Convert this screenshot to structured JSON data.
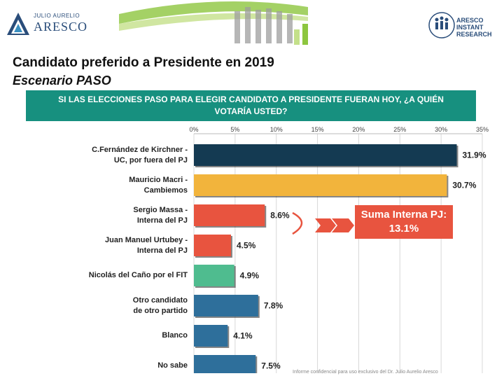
{
  "header": {
    "logo_left_small": "JULIO AURELIO",
    "logo_left_big": "ARESCO",
    "logo_right_lines": [
      "ARESCO",
      "INSTANT",
      "RESEARCH"
    ]
  },
  "title": "Candidato preferido a Presidente en 2019",
  "subtitle": "Escenario PASO",
  "question": "SI LAS ELECCIONES PASO PARA ELEGIR CANDIDATO A PRESIDENTE FUERAN HOY, ¿A QUIÉN VOTARÍA USTED?",
  "annotation": {
    "line1": "Suma Interna PJ:",
    "line2": "13.1%"
  },
  "chart_data": {
    "type": "bar",
    "orientation": "horizontal",
    "categories": [
      [
        "C.Fernández de Kirchner -",
        "UC, por fuera del PJ"
      ],
      [
        "Mauricio Macri -",
        "Cambiemos"
      ],
      [
        "Sergio Massa -",
        "Interna del PJ"
      ],
      [
        "Juan Manuel Urtubey -",
        "Interna del PJ"
      ],
      [
        "Nicolás del Caño por el FIT"
      ],
      [
        "Otro candidato",
        "de otro partido"
      ],
      [
        "Blanco"
      ],
      [
        "No sabe"
      ]
    ],
    "values": [
      31.9,
      30.7,
      8.6,
      4.5,
      4.9,
      7.8,
      4.1,
      7.5
    ],
    "value_labels": [
      "31.9%",
      "30.7%",
      "8.6%",
      "4.5%",
      "4.9%",
      "7.8%",
      "4.1%",
      "7.5%"
    ],
    "colors": [
      "#143a52",
      "#f2b43c",
      "#e8543f",
      "#e8543f",
      "#4fbc8f",
      "#2e6f9b",
      "#2e6f9b",
      "#2e6f9b"
    ],
    "xlim": [
      0,
      35
    ],
    "ticks": [
      "0%",
      "5%",
      "10%",
      "15%",
      "20%",
      "25%",
      "30%",
      "35%"
    ],
    "grid": true
  },
  "colors": {
    "teal_header": "#17907f",
    "accent_red": "#e8543f"
  },
  "footer": "Informe confidencial para uso exclusivo del Dr. Julio Aurelio Aresco"
}
